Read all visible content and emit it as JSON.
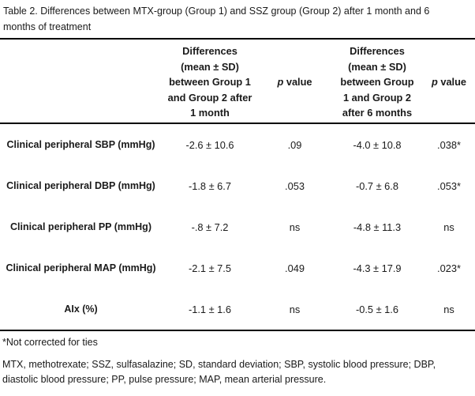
{
  "caption": "Table 2. Differences between MTX-group (Group 1) and SSZ group (Group 2) after 1 month and 6 months of treatment",
  "header": {
    "diff1": {
      "l1": "Differences",
      "l2": "(mean ± SD)",
      "l3": "between Group 1",
      "l4": "and Group 2 after",
      "l5": "1 month"
    },
    "p1": {
      "italic": "p",
      "rest": " value"
    },
    "diff6": {
      "l1": "Differences",
      "l2": "(mean ± SD)",
      "l3": "between Group",
      "l4": "1 and Group 2",
      "l5": "after 6 months"
    },
    "p2": {
      "italic": "p",
      "rest": " value"
    }
  },
  "rows": [
    {
      "label": "Clinical peripheral SBP (mmHg)",
      "diff_1m": "-2.6 ± 10.6",
      "p_1m": ".09",
      "diff_6m": "-4.0 ± 10.8",
      "p_6m": ".038*"
    },
    {
      "label": "Clinical peripheral DBP (mmHg)",
      "diff_1m": "-1.8 ± 6.7",
      "p_1m": ".053",
      "diff_6m": "-0.7 ± 6.8",
      "p_6m": ".053*"
    },
    {
      "label": "Clinical peripheral PP (mmHg)",
      "diff_1m": "-.8 ± 7.2",
      "p_1m": "ns",
      "diff_6m": "-4.8 ± 11.3",
      "p_6m": "ns"
    },
    {
      "label": "Clinical peripheral MAP (mmHg)",
      "diff_1m": "-2.1 ± 7.5",
      "p_1m": ".049",
      "diff_6m": "-4.3 ± 17.9",
      "p_6m": ".023*"
    },
    {
      "label": "AIx (%)",
      "diff_1m": "-1.1 ± 1.6",
      "p_1m": "ns",
      "diff_6m": "-0.5 ± 1.6",
      "p_6m": "ns"
    }
  ],
  "footnotes": {
    "ties": "*Not corrected for ties",
    "abbreviations": "MTX, methotrexate; SSZ, sulfasalazine; SD, standard deviation; SBP, systolic blood pressure; DBP, diastolic blood pressure; PP, pulse pressure; MAP, mean arterial pressure."
  },
  "colors": {
    "background": "#ffffff",
    "text": "#1a1a1a",
    "rule": "#000000"
  }
}
